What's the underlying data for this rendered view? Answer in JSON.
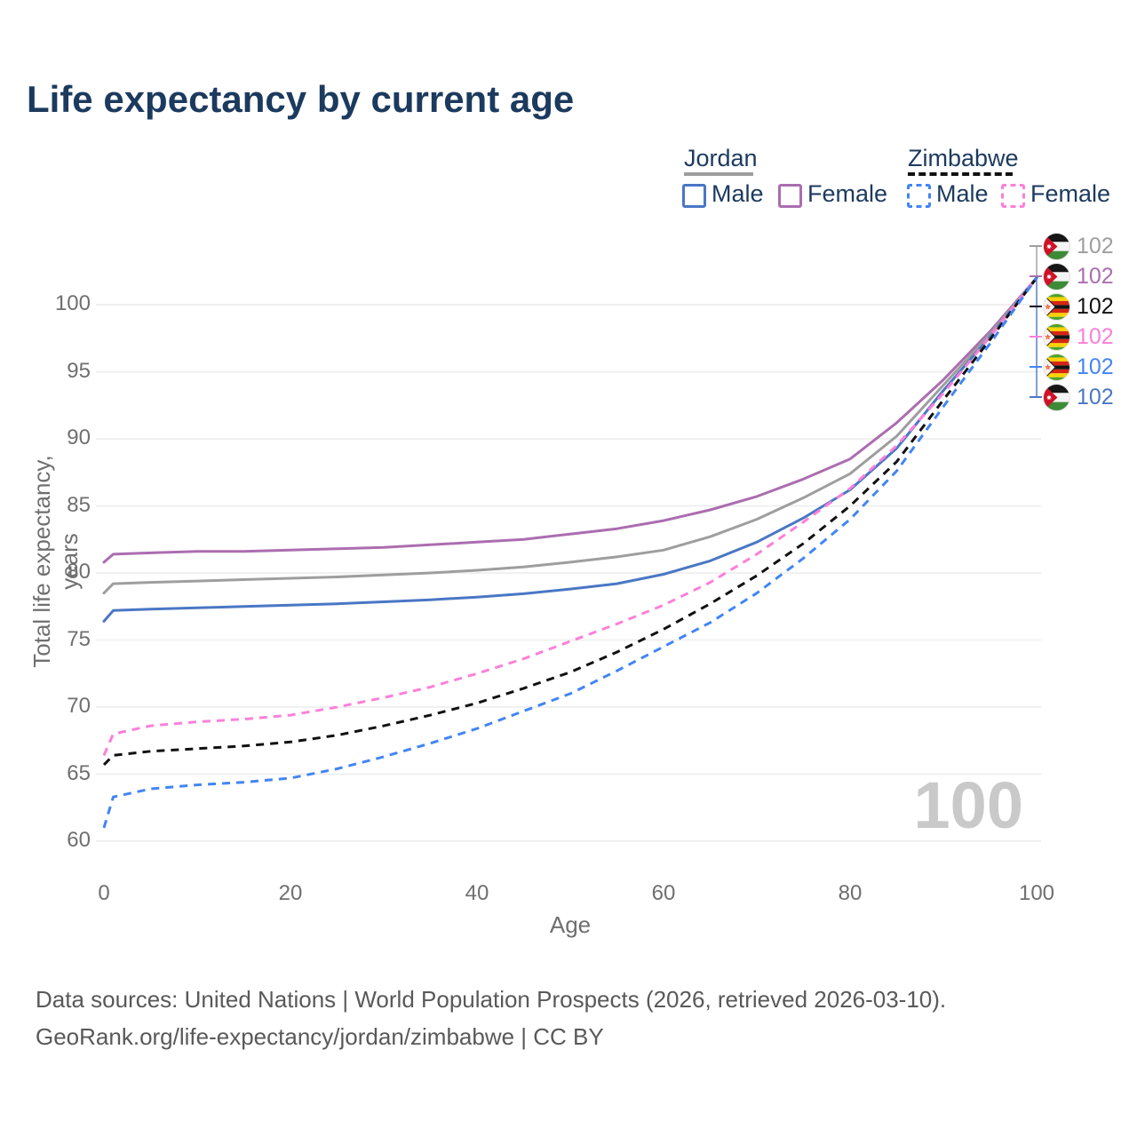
{
  "title": "Life expectancy by current age",
  "watermark_age": "100",
  "legend": {
    "groups": [
      {
        "name": "Jordan",
        "line_style": "solid",
        "underline_color": "#9e9e9e",
        "items": [
          {
            "label": "Male",
            "color": "#4a77c4"
          },
          {
            "label": "Female",
            "color": "#ab6db0"
          }
        ]
      },
      {
        "name": "Zimbabwe",
        "line_style": "dashed",
        "underline_color": "#111111",
        "items": [
          {
            "label": "Male",
            "color": "#4285f4"
          },
          {
            "label": "Female",
            "color": "#fb80d9"
          }
        ]
      }
    ]
  },
  "end_labels": [
    {
      "flag": "jordan",
      "series": "Jordan Both sexes",
      "value": "102",
      "color": "#9e9e9e"
    },
    {
      "flag": "jordan",
      "series": "Jordan Female",
      "value": "102",
      "color": "#ab6db0"
    },
    {
      "flag": "zimbabwe",
      "series": "Zimbabwe Both sexes",
      "value": "102",
      "color": "#111111"
    },
    {
      "flag": "zimbabwe",
      "series": "Zimbabwe Female",
      "value": "102",
      "color": "#fb80d9"
    },
    {
      "flag": "zimbabwe",
      "series": "Zimbabwe Male",
      "value": "102",
      "color": "#4285f4"
    },
    {
      "flag": "jordan",
      "series": "Jordan Male",
      "value": "102",
      "color": "#4a77c4"
    }
  ],
  "chart_data": {
    "type": "line",
    "title": "Life expectancy by current age",
    "xlabel": "Age",
    "ylabel": "Total life expectancy, years",
    "xlim": [
      0,
      100
    ],
    "ylim": [
      58.5,
      103
    ],
    "xticks": [
      0,
      20,
      40,
      60,
      80,
      100
    ],
    "yticks": [
      60,
      65,
      70,
      75,
      80,
      85,
      90,
      95,
      100
    ],
    "grid": "horizontal-only",
    "legend_position": "top-right",
    "x": [
      0,
      1,
      5,
      10,
      15,
      20,
      25,
      30,
      35,
      40,
      45,
      50,
      55,
      60,
      65,
      70,
      75,
      80,
      85,
      90,
      95,
      100
    ],
    "series": [
      {
        "name": "Jordan — Female",
        "country": "Jordan",
        "sex": "Female",
        "color": "#ab6db0",
        "dash": "solid",
        "values": [
          80.8,
          81.4,
          81.5,
          81.6,
          81.6,
          81.7,
          81.8,
          81.9,
          82.1,
          82.3,
          82.5,
          82.9,
          83.3,
          83.9,
          84.7,
          85.7,
          87.0,
          88.5,
          91.2,
          94.4,
          98.0,
          102
        ]
      },
      {
        "name": "Jordan — Both sexes",
        "country": "Jordan",
        "sex": "Both",
        "color": "#9e9e9e",
        "dash": "solid",
        "values": [
          78.5,
          79.2,
          79.3,
          79.4,
          79.5,
          79.6,
          79.7,
          79.85,
          80.0,
          80.2,
          80.45,
          80.8,
          81.2,
          81.7,
          82.7,
          84.0,
          85.6,
          87.4,
          90.2,
          94.0,
          97.8,
          102
        ]
      },
      {
        "name": "Jordan — Male",
        "country": "Jordan",
        "sex": "Male",
        "color": "#4a77c4",
        "dash": "solid",
        "values": [
          76.4,
          77.2,
          77.3,
          77.4,
          77.5,
          77.6,
          77.7,
          77.85,
          78.0,
          78.2,
          78.45,
          78.8,
          79.2,
          79.9,
          80.9,
          82.3,
          84.1,
          86.2,
          89.3,
          93.6,
          97.6,
          102
        ]
      },
      {
        "name": "Zimbabwe — Female",
        "country": "Zimbabwe",
        "sex": "Female",
        "color": "#fb80d9",
        "dash": "dashed",
        "values": [
          66.4,
          68.0,
          68.6,
          68.9,
          69.1,
          69.4,
          70.0,
          70.7,
          71.5,
          72.5,
          73.6,
          74.9,
          76.2,
          77.6,
          79.3,
          81.4,
          83.8,
          86.3,
          89.5,
          93.4,
          97.6,
          102
        ]
      },
      {
        "name": "Zimbabwe — Both sexes",
        "country": "Zimbabwe",
        "sex": "Both",
        "color": "#111111",
        "dash": "dashed",
        "values": [
          65.7,
          66.4,
          66.7,
          66.9,
          67.1,
          67.4,
          67.9,
          68.6,
          69.4,
          70.3,
          71.4,
          72.6,
          74.1,
          75.8,
          77.7,
          79.8,
          82.2,
          85.0,
          88.3,
          92.9,
          97.4,
          102
        ]
      },
      {
        "name": "Zimbabwe — Male",
        "country": "Zimbabwe",
        "sex": "Male",
        "color": "#4285f4",
        "dash": "dashed",
        "values": [
          61.0,
          63.3,
          63.9,
          64.2,
          64.4,
          64.7,
          65.4,
          66.3,
          67.3,
          68.4,
          69.7,
          71.0,
          72.7,
          74.5,
          76.3,
          78.5,
          81.1,
          84.0,
          87.6,
          92.4,
          97.1,
          102
        ]
      }
    ],
    "end_value_label": "102"
  },
  "footer": {
    "line1": "Data sources: United Nations | World Population Prospects (2026, retrieved 2026-03-10).",
    "line2": "GeoRank.org/life-expectancy/jordan/zimbabwe | CC BY"
  }
}
